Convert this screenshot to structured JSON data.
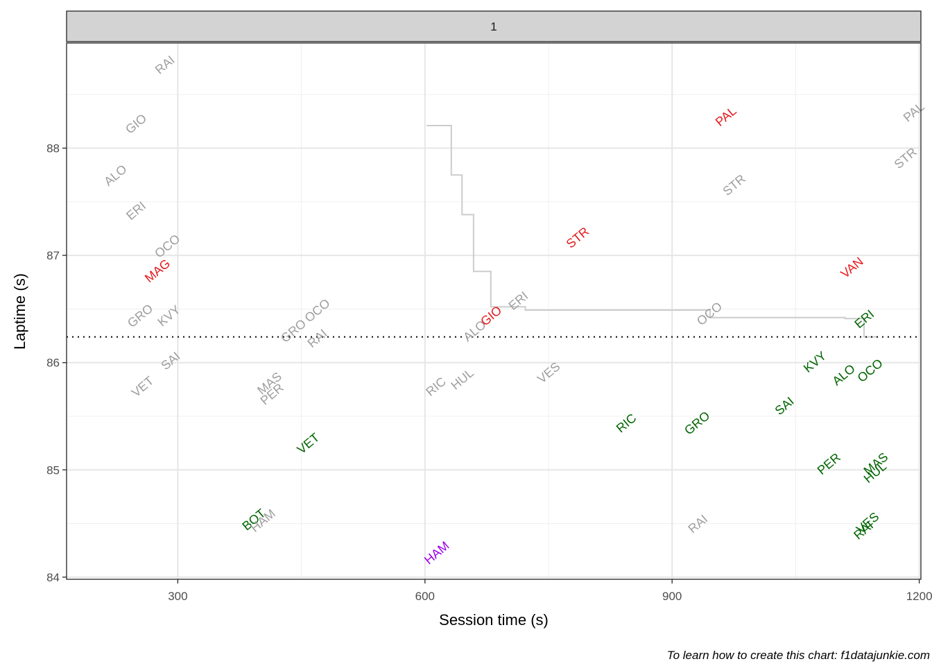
{
  "chart_data": {
    "type": "scatter",
    "facet_label": "1",
    "xlabel": "Session time (s)",
    "ylabel": "Laptime (s)",
    "caption": "To learn how to create this chart: f1datajunkie.com",
    "xlim": [
      165,
      1202
    ],
    "ylim": [
      83.98,
      88.98
    ],
    "x_ticks": [
      300,
      600,
      900,
      1200
    ],
    "y_ticks": [
      84,
      85,
      86,
      87,
      88
    ],
    "grid": true,
    "reference_line": {
      "y": 86.24,
      "style": "dotted"
    },
    "colors": {
      "grey": "#9e9e9e",
      "red": "#e31a1c",
      "green": "#006400",
      "purple": "#9b00e6",
      "step": "#cccccc"
    },
    "step_line": {
      "points": [
        [
          602,
          88.21
        ],
        [
          632,
          88.21
        ],
        [
          632,
          87.75
        ],
        [
          645,
          87.75
        ],
        [
          645,
          87.38
        ],
        [
          659,
          87.38
        ],
        [
          659,
          86.85
        ],
        [
          680,
          86.85
        ],
        [
          680,
          86.52
        ],
        [
          722,
          86.52
        ],
        [
          722,
          86.49
        ],
        [
          946,
          86.49
        ],
        [
          946,
          86.42
        ],
        [
          1110,
          86.42
        ],
        [
          1110,
          86.41
        ],
        [
          1133,
          86.41
        ],
        [
          1133,
          86.24
        ],
        [
          1150,
          86.24
        ]
      ]
    },
    "points": [
      {
        "label": "RAI",
        "x": 285,
        "y": 88.77,
        "color": "grey"
      },
      {
        "label": "GIO",
        "x": 250,
        "y": 88.22,
        "color": "grey"
      },
      {
        "label": "ALO",
        "x": 225,
        "y": 87.74,
        "color": "grey"
      },
      {
        "label": "ERI",
        "x": 250,
        "y": 87.41,
        "color": "grey"
      },
      {
        "label": "OCO",
        "x": 288,
        "y": 87.08,
        "color": "grey"
      },
      {
        "label": "MAG",
        "x": 276,
        "y": 86.85,
        "color": "red"
      },
      {
        "label": "GRO",
        "x": 255,
        "y": 86.43,
        "color": "grey"
      },
      {
        "label": "KVY",
        "x": 290,
        "y": 86.43,
        "color": "grey"
      },
      {
        "label": "SAI",
        "x": 292,
        "y": 86.01,
        "color": "grey"
      },
      {
        "label": "VET",
        "x": 258,
        "y": 85.77,
        "color": "grey"
      },
      {
        "label": "GRO",
        "x": 441,
        "y": 86.29,
        "color": "grey"
      },
      {
        "label": "OCO",
        "x": 470,
        "y": 86.48,
        "color": "grey"
      },
      {
        "label": "RAI",
        "x": 470,
        "y": 86.22,
        "color": "grey"
      },
      {
        "label": "MAS",
        "x": 412,
        "y": 85.8,
        "color": "grey"
      },
      {
        "label": "PER",
        "x": 415,
        "y": 85.7,
        "color": "grey"
      },
      {
        "label": "VET",
        "x": 459,
        "y": 85.24,
        "color": "green"
      },
      {
        "label": "BOT",
        "x": 393,
        "y": 84.53,
        "color": "green"
      },
      {
        "label": "HAM",
        "x": 404,
        "y": 84.52,
        "color": "grey"
      },
      {
        "label": "RIC",
        "x": 614,
        "y": 85.77,
        "color": "grey"
      },
      {
        "label": "HUL",
        "x": 646,
        "y": 85.84,
        "color": "grey"
      },
      {
        "label": "ALO",
        "x": 661,
        "y": 86.29,
        "color": "grey"
      },
      {
        "label": "GIO",
        "x": 681,
        "y": 86.43,
        "color": "red"
      },
      {
        "label": "ERI",
        "x": 714,
        "y": 86.57,
        "color": "grey"
      },
      {
        "label": "VES",
        "x": 751,
        "y": 85.9,
        "color": "grey"
      },
      {
        "label": "HAM",
        "x": 615,
        "y": 84.22,
        "color": "purple"
      },
      {
        "label": "STR",
        "x": 786,
        "y": 87.16,
        "color": "red"
      },
      {
        "label": "RIC",
        "x": 845,
        "y": 85.43,
        "color": "green"
      },
      {
        "label": "PAL",
        "x": 966,
        "y": 88.29,
        "color": "red"
      },
      {
        "label": "STR",
        "x": 976,
        "y": 87.65,
        "color": "grey"
      },
      {
        "label": "GRO",
        "x": 931,
        "y": 85.43,
        "color": "green"
      },
      {
        "label": "OCO",
        "x": 946,
        "y": 86.45,
        "color": "grey"
      },
      {
        "label": "RAI",
        "x": 932,
        "y": 84.49,
        "color": "grey"
      },
      {
        "label": "VAN",
        "x": 1119,
        "y": 86.88,
        "color": "red"
      },
      {
        "label": "ERI",
        "x": 1134,
        "y": 86.4,
        "color": "green"
      },
      {
        "label": "KVY",
        "x": 1074,
        "y": 86.0,
        "color": "green"
      },
      {
        "label": "ALO",
        "x": 1109,
        "y": 85.88,
        "color": "green"
      },
      {
        "label": "OCO",
        "x": 1141,
        "y": 85.92,
        "color": "green"
      },
      {
        "label": "SAI",
        "x": 1037,
        "y": 85.59,
        "color": "green"
      },
      {
        "label": "PER",
        "x": 1091,
        "y": 85.05,
        "color": "green"
      },
      {
        "label": "MAS",
        "x": 1148,
        "y": 85.05,
        "color": "green"
      },
      {
        "label": "HUL",
        "x": 1147,
        "y": 84.97,
        "color": "green"
      },
      {
        "label": "VES",
        "x": 1138,
        "y": 84.5,
        "color": "green"
      },
      {
        "label": "RAI",
        "x": 1133,
        "y": 84.43,
        "color": "green"
      },
      {
        "label": "PAL",
        "x": 1194,
        "y": 88.33,
        "color": "grey"
      },
      {
        "label": "STR",
        "x": 1184,
        "y": 87.9,
        "color": "grey"
      }
    ]
  }
}
